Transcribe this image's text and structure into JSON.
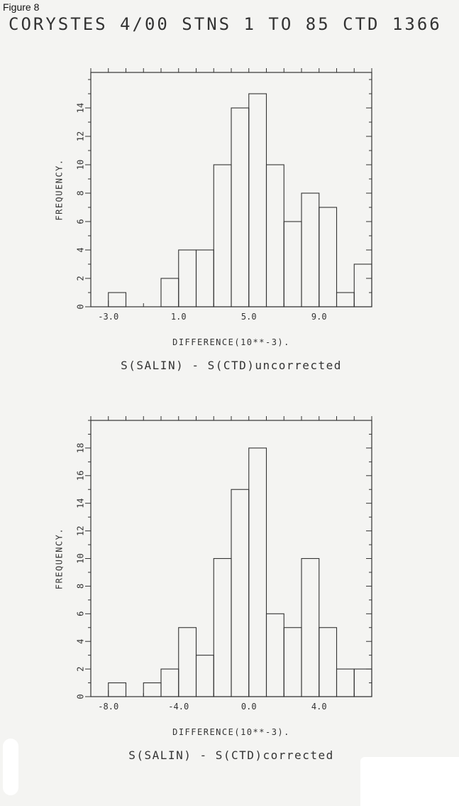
{
  "figure_label": "Figure 8",
  "title": "CORYSTES 4/00 STNS 1 TO 85 CTD 1366",
  "chart_data": [
    {
      "type": "bar",
      "bin_width": 1.0,
      "bin_starts": [
        -4.0,
        -3.0,
        -2.0,
        -1.0,
        0.0,
        1.0,
        2.0,
        3.0,
        4.0,
        5.0,
        6.0,
        7.0,
        8.0,
        9.0,
        10.0,
        11.0
      ],
      "values": [
        0,
        1,
        0,
        0,
        2,
        4,
        4,
        10,
        14,
        15,
        10,
        6,
        8,
        7,
        1,
        3
      ],
      "x_ticks": [
        -3.0,
        1.0,
        5.0,
        9.0
      ],
      "x_tick_labels": [
        "-3.0",
        "1.0",
        "5.0",
        "9.0"
      ],
      "y_ticks": [
        0,
        2,
        4,
        6,
        8,
        10,
        12,
        14
      ],
      "xlim": [
        -4.0,
        12.0
      ],
      "ylim": [
        0,
        16.5
      ],
      "xlabel": "DIFFERENCE(10**-3).",
      "ylabel": "FREQUENCY.",
      "caption": "S(SALIN) - S(CTD)uncorrected",
      "grid": false
    },
    {
      "type": "bar",
      "bin_width": 1.0,
      "bin_starts": [
        -9.0,
        -8.0,
        -7.0,
        -6.0,
        -5.0,
        -4.0,
        -3.0,
        -2.0,
        -1.0,
        0.0,
        1.0,
        2.0,
        3.0,
        4.0,
        5.0,
        6.0
      ],
      "values": [
        0,
        1,
        0,
        1,
        2,
        5,
        3,
        10,
        15,
        18,
        6,
        5,
        10,
        5,
        2,
        2
      ],
      "x_ticks": [
        -8.0,
        -4.0,
        0.0,
        4.0
      ],
      "x_tick_labels": [
        "-8.0",
        "-4.0",
        "0.0",
        "4.0"
      ],
      "y_ticks": [
        0,
        2,
        4,
        6,
        8,
        10,
        12,
        14,
        16,
        18
      ],
      "xlim": [
        -9.0,
        7.0
      ],
      "ylim": [
        0,
        20
      ],
      "xlabel": "DIFFERENCE(10**-3).",
      "ylabel": "FREQUENCY.",
      "caption": "S(SALIN) - S(CTD)corrected",
      "grid": false
    }
  ]
}
